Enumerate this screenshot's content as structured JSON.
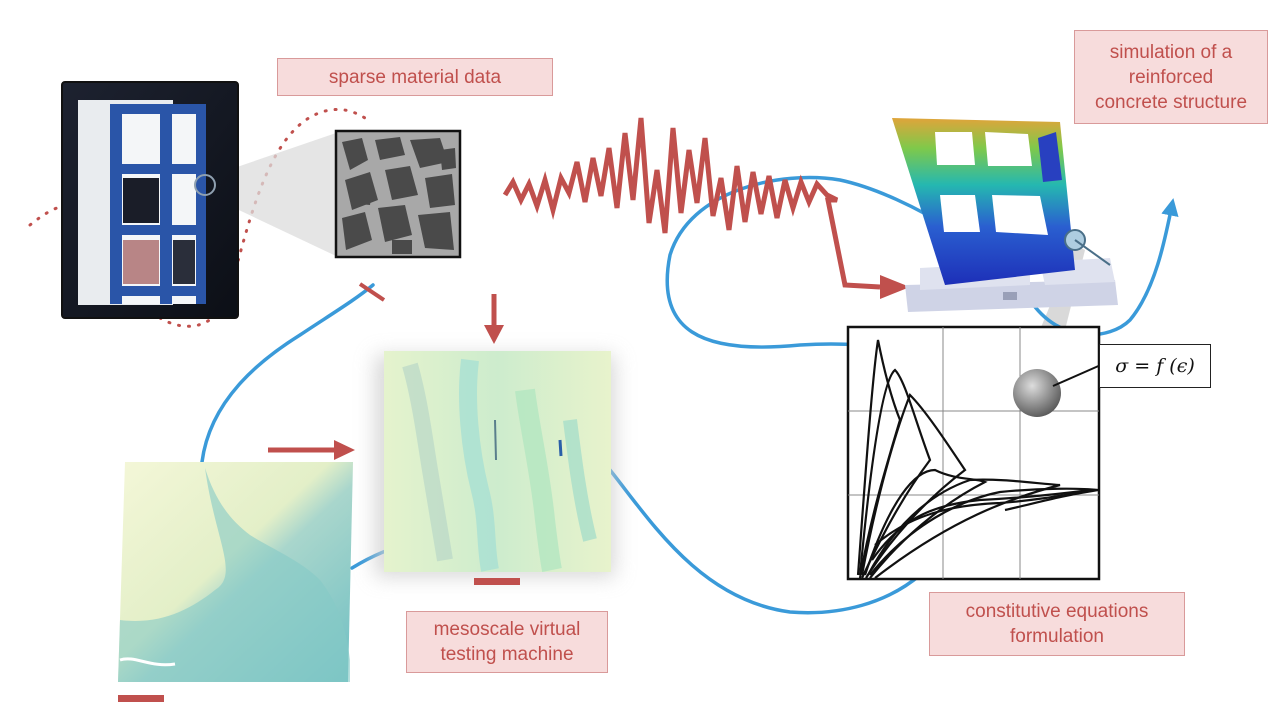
{
  "labels": {
    "sparse_material_data": "sparse material data",
    "simulation": [
      "simulation of a",
      "reinforced",
      "concrete structure"
    ],
    "mesoscale": [
      "mesoscale virtual",
      "testing machine"
    ],
    "constitutive": [
      "constitutive equations",
      "formulation"
    ]
  },
  "formula": "σ = f (ϵ)",
  "colors": {
    "accent_red": "#c0504d",
    "label_fill": "#f7dcdc",
    "label_border": "#d99a9a",
    "flow_blue": "#3a9ad9",
    "frame_blue": "#2a55a8"
  },
  "icons": {
    "building_photo": "test-building-photo",
    "concrete_sample": "concrete-mesostructure-image",
    "seismic_signal": "earthquake-signal",
    "fe_model": "finite-element-frame",
    "simulation_front": "mesoscale-simulation-front",
    "simulation_back": "mesoscale-simulation-back",
    "stress_strain_plot": "hysteresis-plot"
  }
}
